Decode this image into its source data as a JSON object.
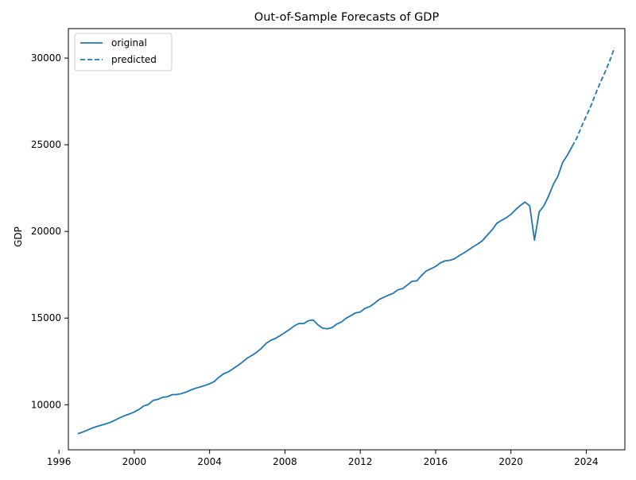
{
  "chart_data": {
    "type": "line",
    "title": "Out-of-Sample Forecasts of GDP",
    "xlabel": "",
    "ylabel": "GDP",
    "xlim": [
      1996.5,
      2026.05
    ],
    "ylim": [
      7400,
      31700
    ],
    "x_ticks": [
      1996,
      2000,
      2004,
      2008,
      2012,
      2016,
      2020,
      2024
    ],
    "x_tick_labels": [
      "1996",
      "2000",
      "2004",
      "2008",
      "2012",
      "2016",
      "2020",
      "2024"
    ],
    "y_ticks": [
      10000,
      15000,
      20000,
      25000,
      30000
    ],
    "y_tick_labels": [
      "10000",
      "15000",
      "20000",
      "25000",
      "30000"
    ],
    "grid": false,
    "legend_position": "top-left",
    "colors": {
      "line": "#1f77b4"
    },
    "series": [
      {
        "name": "original",
        "style": "solid",
        "points": [
          [
            1997.0,
            8330
          ],
          [
            1997.25,
            8420
          ],
          [
            1997.5,
            8530
          ],
          [
            1997.75,
            8650
          ],
          [
            1998.0,
            8740
          ],
          [
            1998.25,
            8820
          ],
          [
            1998.5,
            8900
          ],
          [
            1998.75,
            8990
          ],
          [
            1999.0,
            9120
          ],
          [
            1999.25,
            9260
          ],
          [
            1999.5,
            9370
          ],
          [
            1999.75,
            9470
          ],
          [
            2000.0,
            9580
          ],
          [
            2000.25,
            9730
          ],
          [
            2000.5,
            9930
          ],
          [
            2000.75,
            10020
          ],
          [
            2001.0,
            10250
          ],
          [
            2001.25,
            10310
          ],
          [
            2001.5,
            10430
          ],
          [
            2001.75,
            10460
          ],
          [
            2002.0,
            10580
          ],
          [
            2002.25,
            10590
          ],
          [
            2002.5,
            10640
          ],
          [
            2002.75,
            10730
          ],
          [
            2003.0,
            10850
          ],
          [
            2003.25,
            10950
          ],
          [
            2003.5,
            11030
          ],
          [
            2003.75,
            11110
          ],
          [
            2004.0,
            11210
          ],
          [
            2004.25,
            11340
          ],
          [
            2004.5,
            11590
          ],
          [
            2004.75,
            11790
          ],
          [
            2005.0,
            11900
          ],
          [
            2005.25,
            12080
          ],
          [
            2005.5,
            12260
          ],
          [
            2005.75,
            12470
          ],
          [
            2006.0,
            12690
          ],
          [
            2006.25,
            12850
          ],
          [
            2006.5,
            13030
          ],
          [
            2006.75,
            13250
          ],
          [
            2007.0,
            13540
          ],
          [
            2007.25,
            13720
          ],
          [
            2007.5,
            13830
          ],
          [
            2007.75,
            13990
          ],
          [
            2008.0,
            14170
          ],
          [
            2008.25,
            14350
          ],
          [
            2008.5,
            14550
          ],
          [
            2008.75,
            14690
          ],
          [
            2009.0,
            14680
          ],
          [
            2009.25,
            14850
          ],
          [
            2009.5,
            14890
          ],
          [
            2009.75,
            14610
          ],
          [
            2010.0,
            14420
          ],
          [
            2010.25,
            14380
          ],
          [
            2010.5,
            14450
          ],
          [
            2010.75,
            14650
          ],
          [
            2011.0,
            14780
          ],
          [
            2011.25,
            14990
          ],
          [
            2011.5,
            15140
          ],
          [
            2011.75,
            15300
          ],
          [
            2012.0,
            15350
          ],
          [
            2012.25,
            15560
          ],
          [
            2012.5,
            15660
          ],
          [
            2012.75,
            15850
          ],
          [
            2013.0,
            16070
          ],
          [
            2013.25,
            16200
          ],
          [
            2013.5,
            16320
          ],
          [
            2013.75,
            16430
          ],
          [
            2014.0,
            16630
          ],
          [
            2014.25,
            16700
          ],
          [
            2014.5,
            16910
          ],
          [
            2014.75,
            17120
          ],
          [
            2015.0,
            17150
          ],
          [
            2015.25,
            17450
          ],
          [
            2015.5,
            17720
          ],
          [
            2015.75,
            17840
          ],
          [
            2016.0,
            17980
          ],
          [
            2016.25,
            18180
          ],
          [
            2016.5,
            18300
          ],
          [
            2016.75,
            18330
          ],
          [
            2017.0,
            18420
          ],
          [
            2017.25,
            18600
          ],
          [
            2017.5,
            18760
          ],
          [
            2017.75,
            18930
          ],
          [
            2018.0,
            19120
          ],
          [
            2018.25,
            19280
          ],
          [
            2018.5,
            19480
          ],
          [
            2018.75,
            19790
          ],
          [
            2019.0,
            20090
          ],
          [
            2019.25,
            20470
          ],
          [
            2019.5,
            20640
          ],
          [
            2019.75,
            20790
          ],
          [
            2020.0,
            20980
          ],
          [
            2020.25,
            21260
          ],
          [
            2020.5,
            21500
          ],
          [
            2020.75,
            21690
          ],
          [
            2021.0,
            21470
          ],
          [
            2021.25,
            19500
          ],
          [
            2021.5,
            21130
          ],
          [
            2021.75,
            21480
          ],
          [
            2022.0,
            22040
          ],
          [
            2022.25,
            22710
          ],
          [
            2022.5,
            23200
          ],
          [
            2022.75,
            23990
          ],
          [
            2023.0,
            24400
          ],
          [
            2023.25,
            24900
          ]
        ]
      },
      {
        "name": "predicted",
        "style": "dashed",
        "points": [
          [
            2023.25,
            24900
          ],
          [
            2023.5,
            25400
          ],
          [
            2023.75,
            26050
          ],
          [
            2024.0,
            26650
          ],
          [
            2024.25,
            27250
          ],
          [
            2024.5,
            27950
          ],
          [
            2024.75,
            28600
          ],
          [
            2025.0,
            29200
          ],
          [
            2025.25,
            29850
          ],
          [
            2025.5,
            30600
          ]
        ]
      }
    ]
  }
}
